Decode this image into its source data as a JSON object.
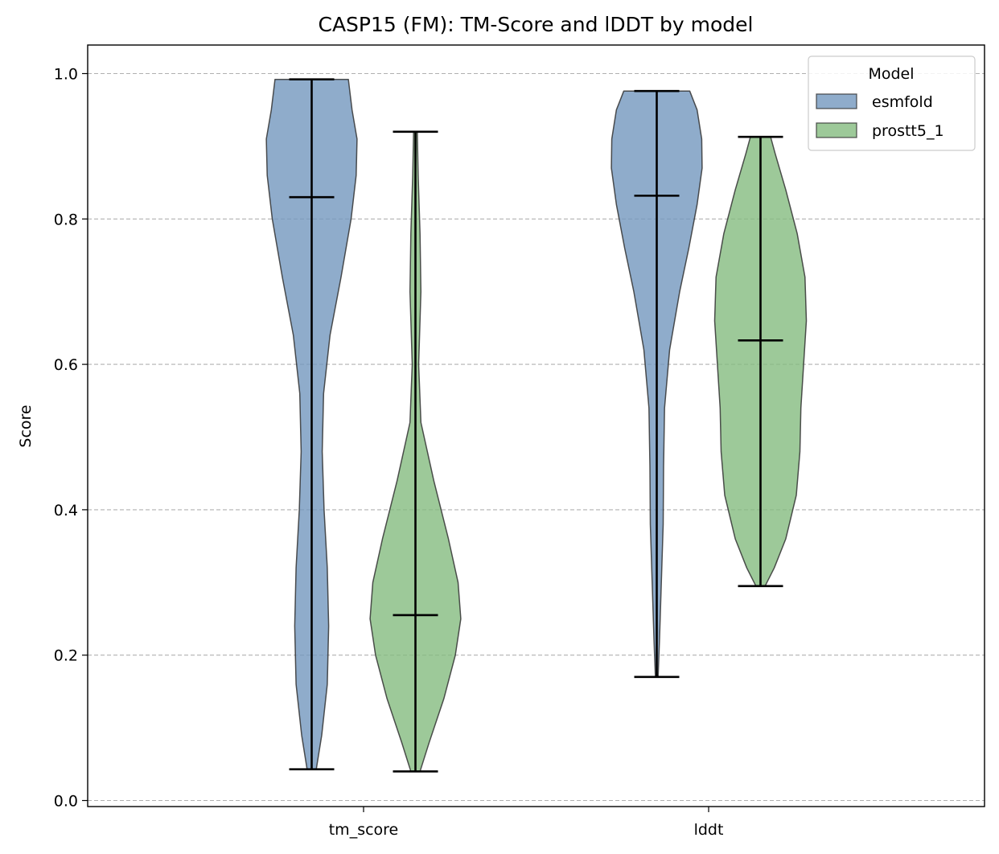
{
  "chart_data": {
    "type": "violin",
    "title": "CASP15 (FM): TM-Score and lDDT by model",
    "xlabel": "",
    "ylabel": "Score",
    "ylim": [
      -0.01,
      1.04
    ],
    "yticks": [
      "0.0",
      "0.2",
      "0.4",
      "0.6",
      "0.8",
      "1.0"
    ],
    "categories": [
      "tm_score",
      "lddt"
    ],
    "grid": "y-dashed",
    "legend": {
      "title": "Model",
      "placement": "top-right"
    },
    "series": [
      {
        "name": "esmfold",
        "color": "#7397be",
        "groups": [
          {
            "category": "tm_score",
            "min": 0.043,
            "max": 0.992,
            "median": 0.83,
            "density": [
              [
                0.043,
                0.1
              ],
              [
                0.09,
                0.22
              ],
              [
                0.16,
                0.34
              ],
              [
                0.24,
                0.37
              ],
              [
                0.32,
                0.34
              ],
              [
                0.4,
                0.27
              ],
              [
                0.48,
                0.23
              ],
              [
                0.56,
                0.26
              ],
              [
                0.64,
                0.4
              ],
              [
                0.72,
                0.64
              ],
              [
                0.8,
                0.86
              ],
              [
                0.86,
                0.97
              ],
              [
                0.91,
                0.99
              ],
              [
                0.95,
                0.88
              ],
              [
                0.992,
                0.8
              ]
            ]
          },
          {
            "category": "lddt",
            "min": 0.17,
            "max": 0.976,
            "median": 0.832,
            "density": [
              [
                0.17,
                0.03
              ],
              [
                0.22,
                0.06
              ],
              [
                0.3,
                0.1
              ],
              [
                0.38,
                0.14
              ],
              [
                0.46,
                0.15
              ],
              [
                0.54,
                0.17
              ],
              [
                0.62,
                0.28
              ],
              [
                0.7,
                0.5
              ],
              [
                0.76,
                0.7
              ],
              [
                0.82,
                0.88
              ],
              [
                0.87,
                0.99
              ],
              [
                0.91,
                0.98
              ],
              [
                0.95,
                0.88
              ],
              [
                0.976,
                0.72
              ]
            ]
          }
        ]
      },
      {
        "name": "prostt5_1",
        "color": "#84bc7f",
        "groups": [
          {
            "category": "tm_score",
            "min": 0.04,
            "max": 0.92,
            "median": 0.255,
            "density": [
              [
                0.04,
                0.1
              ],
              [
                0.08,
                0.3
              ],
              [
                0.14,
                0.62
              ],
              [
                0.2,
                0.87
              ],
              [
                0.25,
                0.99
              ],
              [
                0.3,
                0.93
              ],
              [
                0.36,
                0.72
              ],
              [
                0.44,
                0.4
              ],
              [
                0.52,
                0.12
              ],
              [
                0.6,
                0.07
              ],
              [
                0.7,
                0.12
              ],
              [
                0.78,
                0.1
              ],
              [
                0.86,
                0.06
              ],
              [
                0.92,
                0.04
              ]
            ]
          },
          {
            "category": "lddt",
            "min": 0.295,
            "max": 0.913,
            "median": 0.633,
            "density": [
              [
                0.295,
                0.1
              ],
              [
                0.32,
                0.3
              ],
              [
                0.36,
                0.55
              ],
              [
                0.42,
                0.78
              ],
              [
                0.48,
                0.86
              ],
              [
                0.54,
                0.88
              ],
              [
                0.6,
                0.94
              ],
              [
                0.66,
                1.0
              ],
              [
                0.72,
                0.97
              ],
              [
                0.78,
                0.8
              ],
              [
                0.84,
                0.55
              ],
              [
                0.89,
                0.32
              ],
              [
                0.913,
                0.22
              ]
            ]
          }
        ]
      }
    ]
  }
}
